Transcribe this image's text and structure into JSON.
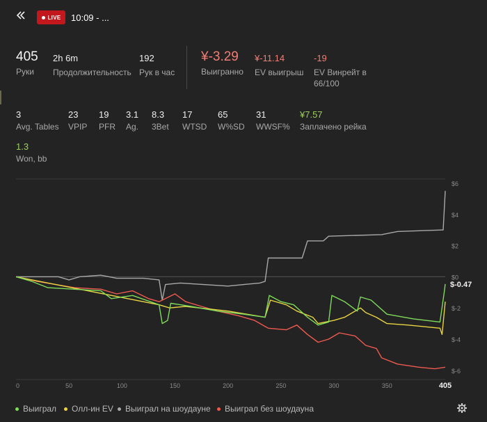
{
  "header": {
    "back_icon": "double-chevron-left-icon",
    "live_label": "LIVE",
    "title": "10:09 - ..."
  },
  "stats_row1": [
    {
      "value": "405",
      "label": "Руки"
    },
    {
      "value": "2h 6m",
      "label": "Продолжительность"
    },
    {
      "value": "192",
      "label": "Рук в час"
    },
    {
      "value": "¥-3.29",
      "label": "Выигранно"
    },
    {
      "value": "¥-11.14",
      "label": "EV выигрыш"
    },
    {
      "value": "-19",
      "label": "EV Винрейт в",
      "label2": "66/100"
    }
  ],
  "stats_row2": [
    {
      "value": "3",
      "label": "Avg. Tables"
    },
    {
      "value": "23",
      "label": "VPIP"
    },
    {
      "value": "19",
      "label": "PFR"
    },
    {
      "value": "3.1",
      "label": "Ag."
    },
    {
      "value": "8.3",
      "label": "3Bet"
    },
    {
      "value": "17",
      "label": "WTSD"
    },
    {
      "value": "65",
      "label": "W%SD"
    },
    {
      "value": "31",
      "label": "WWSF%"
    },
    {
      "value": "¥7.57",
      "label": "Заплачено рейка"
    }
  ],
  "stats_row3": [
    {
      "value": "1.3",
      "label": "Won, bb"
    }
  ],
  "colors": {
    "won": "#7fdc5b",
    "allin_ev": "#e9d442",
    "showdown": "#a9a9a9",
    "non_showdown": "#ef5a50",
    "live_badge": "#c2181d"
  },
  "chart_data": {
    "type": "line",
    "x_ticks": [
      "0",
      "50",
      "100",
      "150",
      "200",
      "250",
      "300",
      "350",
      "405"
    ],
    "y_ticks": [
      "$6",
      "$4",
      "$2",
      "$0",
      "$-2",
      "$-4",
      "$-6"
    ],
    "xlim": [
      0,
      405
    ],
    "ylim": [
      -6.5,
      6
    ],
    "end_label": "$-0.47",
    "series": [
      {
        "name": "Выиграл",
        "color_key": "won",
        "points": [
          [
            0,
            0
          ],
          [
            15,
            -0.3
          ],
          [
            30,
            -0.7
          ],
          [
            55,
            -0.8
          ],
          [
            80,
            -0.9
          ],
          [
            90,
            -1.4
          ],
          [
            110,
            -1.2
          ],
          [
            135,
            -1.8
          ],
          [
            138,
            -3.0
          ],
          [
            143,
            -2.8
          ],
          [
            146,
            -1.7
          ],
          [
            165,
            -1.9
          ],
          [
            190,
            -2.2
          ],
          [
            215,
            -2.4
          ],
          [
            235,
            -2.6
          ],
          [
            239,
            -1.2
          ],
          [
            250,
            -1.6
          ],
          [
            262,
            -1.8
          ],
          [
            275,
            -2.6
          ],
          [
            285,
            -3.1
          ],
          [
            295,
            -2.9
          ],
          [
            298,
            -1.2
          ],
          [
            310,
            -1.6
          ],
          [
            322,
            -2.2
          ],
          [
            325,
            -1.3
          ],
          [
            335,
            -1.5
          ],
          [
            350,
            -2.4
          ],
          [
            375,
            -2.7
          ],
          [
            400,
            -2.9
          ],
          [
            404,
            -1.0
          ],
          [
            405,
            -0.47
          ]
        ]
      },
      {
        "name": "Олл-ин EV",
        "color_key": "allin_ev",
        "points": [
          [
            0,
            0
          ],
          [
            60,
            -0.8
          ],
          [
            135,
            -1.8
          ],
          [
            145,
            -2.0
          ],
          [
            160,
            -1.9
          ],
          [
            200,
            -2.2
          ],
          [
            235,
            -2.6
          ],
          [
            240,
            -1.5
          ],
          [
            255,
            -1.8
          ],
          [
            265,
            -2.2
          ],
          [
            280,
            -2.6
          ],
          [
            285,
            -3.0
          ],
          [
            300,
            -2.8
          ],
          [
            310,
            -2.6
          ],
          [
            325,
            -2.0
          ],
          [
            330,
            -2.3
          ],
          [
            340,
            -2.6
          ],
          [
            350,
            -3.0
          ],
          [
            370,
            -3.1
          ],
          [
            400,
            -3.3
          ],
          [
            402,
            -3.7
          ],
          [
            405,
            -1.6
          ]
        ]
      },
      {
        "name": "Выиграл на шоудауне",
        "color_key": "showdown",
        "points": [
          [
            0,
            0
          ],
          [
            40,
            0
          ],
          [
            50,
            -0.2
          ],
          [
            60,
            0
          ],
          [
            80,
            0.1
          ],
          [
            95,
            -0.1
          ],
          [
            120,
            -0.1
          ],
          [
            135,
            -0.2
          ],
          [
            138,
            -1.5
          ],
          [
            141,
            -0.5
          ],
          [
            155,
            -0.4
          ],
          [
            200,
            -0.6
          ],
          [
            215,
            -0.5
          ],
          [
            230,
            -0.4
          ],
          [
            235,
            -0.3
          ],
          [
            238,
            1.2
          ],
          [
            270,
            1.2
          ],
          [
            275,
            2.3
          ],
          [
            290,
            2.3
          ],
          [
            295,
            2.6
          ],
          [
            345,
            2.7
          ],
          [
            360,
            2.9
          ],
          [
            403,
            3.0
          ],
          [
            405,
            5.5
          ]
        ]
      },
      {
        "name": "Выиграл без шоудауна",
        "color_key": "non_showdown",
        "points": [
          [
            0,
            0
          ],
          [
            20,
            -0.3
          ],
          [
            55,
            -0.7
          ],
          [
            80,
            -0.8
          ],
          [
            95,
            -1.1
          ],
          [
            110,
            -0.9
          ],
          [
            125,
            -1.4
          ],
          [
            135,
            -1.6
          ],
          [
            150,
            -1.1
          ],
          [
            160,
            -1.6
          ],
          [
            175,
            -1.9
          ],
          [
            190,
            -2.2
          ],
          [
            210,
            -2.5
          ],
          [
            225,
            -2.8
          ],
          [
            238,
            -3.3
          ],
          [
            255,
            -3.4
          ],
          [
            265,
            -3.1
          ],
          [
            275,
            -3.7
          ],
          [
            285,
            -4.2
          ],
          [
            295,
            -4.0
          ],
          [
            305,
            -3.6
          ],
          [
            320,
            -3.8
          ],
          [
            330,
            -4.4
          ],
          [
            340,
            -4.6
          ],
          [
            345,
            -5.2
          ],
          [
            360,
            -5.6
          ],
          [
            380,
            -5.8
          ],
          [
            395,
            -5.9
          ],
          [
            405,
            -5.8
          ]
        ]
      }
    ]
  },
  "legend": [
    {
      "label": "Выиграл",
      "color_key": "won"
    },
    {
      "label": "Олл-ин EV",
      "color_key": "allin_ev"
    },
    {
      "label": "Выиграл на шоудауне",
      "color_key": "showdown"
    },
    {
      "label": "Выиграл без шоудауна",
      "color_key": "non_showdown"
    }
  ],
  "footer": {
    "settings_icon": "gear-icon"
  }
}
